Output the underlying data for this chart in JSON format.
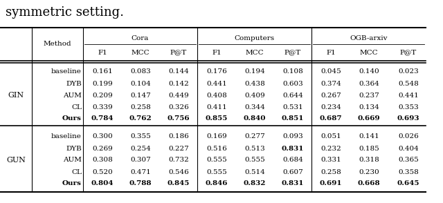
{
  "title_text": "symmetric setting.",
  "row_groups": [
    {
      "group": "GIN",
      "rows": [
        {
          "method": "baseline",
          "values": [
            "0.161",
            "0.083",
            "0.144",
            "0.176",
            "0.194",
            "0.108",
            "0.045",
            "0.140",
            "0.023"
          ],
          "bold": [
            false,
            false,
            false,
            false,
            false,
            false,
            false,
            false,
            false
          ]
        },
        {
          "method": "DYB",
          "values": [
            "0.199",
            "0.104",
            "0.142",
            "0.441",
            "0.438",
            "0.603",
            "0.374",
            "0.364",
            "0.548"
          ],
          "bold": [
            false,
            false,
            false,
            false,
            false,
            false,
            false,
            false,
            false
          ]
        },
        {
          "method": "AUM",
          "values": [
            "0.209",
            "0.147",
            "0.449",
            "0.408",
            "0.409",
            "0.644",
            "0.267",
            "0.237",
            "0.441"
          ],
          "bold": [
            false,
            false,
            false,
            false,
            false,
            false,
            false,
            false,
            false
          ]
        },
        {
          "method": "CL",
          "values": [
            "0.339",
            "0.258",
            "0.326",
            "0.411",
            "0.344",
            "0.531",
            "0.234",
            "0.134",
            "0.353"
          ],
          "bold": [
            false,
            false,
            false,
            false,
            false,
            false,
            false,
            false,
            false
          ]
        },
        {
          "method": "Ours",
          "values": [
            "0.784",
            "0.762",
            "0.756",
            "0.855",
            "0.840",
            "0.851",
            "0.687",
            "0.669",
            "0.693"
          ],
          "bold": [
            true,
            true,
            true,
            true,
            true,
            true,
            true,
            true,
            true
          ]
        }
      ]
    },
    {
      "group": "GUN",
      "rows": [
        {
          "method": "baseline",
          "values": [
            "0.300",
            "0.355",
            "0.186",
            "0.169",
            "0.277",
            "0.093",
            "0.051",
            "0.141",
            "0.026"
          ],
          "bold": [
            false,
            false,
            false,
            false,
            false,
            false,
            false,
            false,
            false
          ]
        },
        {
          "method": "DYB",
          "values": [
            "0.269",
            "0.254",
            "0.227",
            "0.516",
            "0.513",
            "0.831",
            "0.232",
            "0.185",
            "0.404"
          ],
          "bold": [
            false,
            false,
            false,
            false,
            false,
            true,
            false,
            false,
            false
          ]
        },
        {
          "method": "AUM",
          "values": [
            "0.308",
            "0.307",
            "0.732",
            "0.555",
            "0.555",
            "0.684",
            "0.331",
            "0.318",
            "0.365"
          ],
          "bold": [
            false,
            false,
            false,
            false,
            false,
            false,
            false,
            false,
            false
          ]
        },
        {
          "method": "CL",
          "values": [
            "0.520",
            "0.471",
            "0.546",
            "0.555",
            "0.514",
            "0.607",
            "0.258",
            "0.230",
            "0.358"
          ],
          "bold": [
            false,
            false,
            false,
            false,
            false,
            false,
            false,
            false,
            false
          ]
        },
        {
          "method": "Ours",
          "values": [
            "0.804",
            "0.788",
            "0.845",
            "0.846",
            "0.832",
            "0.831",
            "0.691",
            "0.668",
            "0.645"
          ],
          "bold": [
            true,
            true,
            true,
            true,
            true,
            true,
            true,
            true,
            true
          ]
        }
      ]
    }
  ],
  "col_group_labels": [
    "Cora",
    "Computers",
    "OGB-arxiv"
  ],
  "sub_col_labels": [
    "F1",
    "MCC",
    "P@T",
    "F1",
    "MCC",
    "P@T",
    "F1",
    "MCC",
    "P@T"
  ],
  "font_size": 7.5,
  "title_font_size": 13
}
